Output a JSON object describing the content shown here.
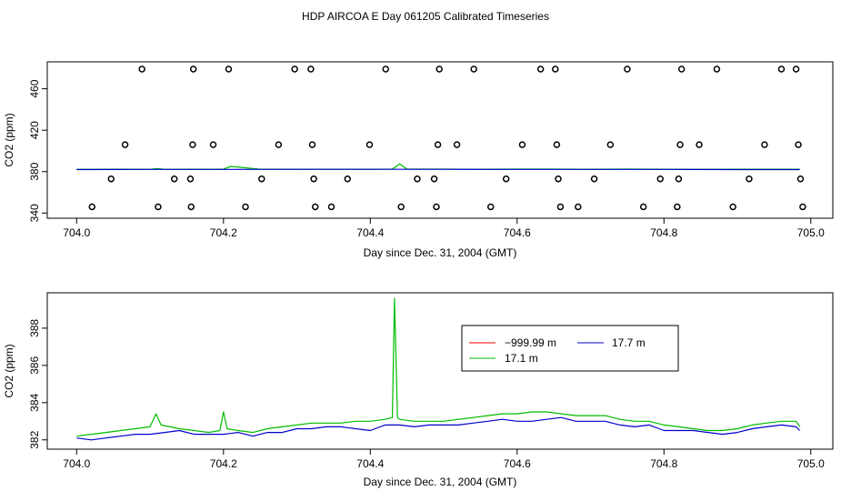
{
  "page_title": "HDP AIRCOA E  Day 061205  Calibrated Timeseries",
  "colors": {
    "red": "#ff0000",
    "green": "#00bb00",
    "blue": "#0000cc",
    "axis": "#000000"
  },
  "chart_data": [
    {
      "type": "scatter",
      "title": "",
      "xlabel": "Day since Dec. 31, 2004 (GMT)",
      "ylabel": "CO2 (ppm)",
      "xlim": [
        704.0,
        705.0
      ],
      "ylim": [
        340,
        480
      ],
      "xticks": [
        "704.0",
        "704.2",
        "704.4",
        "704.6",
        "704.8",
        "705.0"
      ],
      "yticks": [
        "340",
        "380",
        "420",
        "460"
      ],
      "grid": false,
      "legend": "none",
      "points": [
        {
          "x": 704.021,
          "y": 346
        },
        {
          "x": 704.047,
          "y": 373
        },
        {
          "x": 704.066,
          "y": 406
        },
        {
          "x": 704.089,
          "y": 479
        },
        {
          "x": 704.111,
          "y": 346
        },
        {
          "x": 704.133,
          "y": 373
        },
        {
          "x": 704.155,
          "y": 373
        },
        {
          "x": 704.156,
          "y": 346
        },
        {
          "x": 704.158,
          "y": 406
        },
        {
          "x": 704.159,
          "y": 479
        },
        {
          "x": 704.186,
          "y": 406
        },
        {
          "x": 704.207,
          "y": 479
        },
        {
          "x": 704.23,
          "y": 346
        },
        {
          "x": 704.252,
          "y": 373
        },
        {
          "x": 704.275,
          "y": 406
        },
        {
          "x": 704.297,
          "y": 479
        },
        {
          "x": 704.319,
          "y": 479
        },
        {
          "x": 704.321,
          "y": 406
        },
        {
          "x": 704.323,
          "y": 373
        },
        {
          "x": 704.325,
          "y": 346
        },
        {
          "x": 704.347,
          "y": 346
        },
        {
          "x": 704.369,
          "y": 373
        },
        {
          "x": 704.399,
          "y": 406
        },
        {
          "x": 704.421,
          "y": 479
        },
        {
          "x": 704.442,
          "y": 346
        },
        {
          "x": 704.464,
          "y": 373
        },
        {
          "x": 704.487,
          "y": 373
        },
        {
          "x": 704.49,
          "y": 346
        },
        {
          "x": 704.492,
          "y": 406
        },
        {
          "x": 704.494,
          "y": 479
        },
        {
          "x": 704.518,
          "y": 406
        },
        {
          "x": 704.541,
          "y": 479
        },
        {
          "x": 704.564,
          "y": 346
        },
        {
          "x": 704.585,
          "y": 373
        },
        {
          "x": 704.607,
          "y": 406
        },
        {
          "x": 704.632,
          "y": 479
        },
        {
          "x": 704.652,
          "y": 479
        },
        {
          "x": 704.654,
          "y": 406
        },
        {
          "x": 704.656,
          "y": 373
        },
        {
          "x": 704.659,
          "y": 346
        },
        {
          "x": 704.683,
          "y": 346
        },
        {
          "x": 704.705,
          "y": 373
        },
        {
          "x": 704.727,
          "y": 406
        },
        {
          "x": 704.75,
          "y": 479
        },
        {
          "x": 704.772,
          "y": 346
        },
        {
          "x": 704.795,
          "y": 373
        },
        {
          "x": 704.818,
          "y": 346
        },
        {
          "x": 704.82,
          "y": 373
        },
        {
          "x": 704.822,
          "y": 406
        },
        {
          "x": 704.824,
          "y": 479
        },
        {
          "x": 704.848,
          "y": 406
        },
        {
          "x": 704.872,
          "y": 479
        },
        {
          "x": 704.894,
          "y": 346
        },
        {
          "x": 704.916,
          "y": 373
        },
        {
          "x": 704.937,
          "y": 406
        },
        {
          "x": 704.96,
          "y": 479
        },
        {
          "x": 704.98,
          "y": 479
        },
        {
          "x": 704.983,
          "y": 406
        },
        {
          "x": 704.986,
          "y": 373
        },
        {
          "x": 704.989,
          "y": 346
        }
      ],
      "series": [
        {
          "color": "green",
          "x": [
            704.0,
            704.05,
            704.1,
            704.11,
            704.12,
            704.15,
            704.2,
            704.21,
            704.25,
            704.3,
            704.35,
            704.4,
            704.43,
            704.44,
            704.45,
            704.5,
            704.55,
            704.6,
            704.65,
            704.7,
            704.75,
            704.8,
            704.85,
            704.9,
            704.95,
            704.985
          ],
          "values": [
            382.2,
            382.3,
            382.2,
            383.0,
            382.2,
            382.3,
            382.4,
            385.0,
            382.3,
            382.3,
            382.3,
            382.3,
            382.4,
            387.5,
            382.4,
            382.4,
            382.3,
            382.4,
            382.4,
            382.3,
            382.4,
            382.3,
            382.2,
            382.3,
            382.3,
            382.3
          ]
        },
        {
          "color": "blue",
          "x": [
            704.0,
            704.1,
            704.2,
            704.3,
            704.4,
            704.5,
            704.6,
            704.7,
            704.8,
            704.9,
            704.985
          ],
          "values": [
            382.0,
            382.1,
            382.1,
            382.2,
            382.2,
            382.2,
            382.1,
            382.1,
            382.1,
            382.0,
            382.0
          ]
        }
      ]
    },
    {
      "type": "line",
      "title": "",
      "xlabel": "Day since Dec. 31, 2004 (GMT)",
      "ylabel": "CO2 (ppm)",
      "xlim": [
        704.0,
        705.0
      ],
      "ylim": [
        381.8,
        389.6
      ],
      "xticks": [
        "704.0",
        "704.2",
        "704.4",
        "704.6",
        "704.8",
        "705.0"
      ],
      "yticks": [
        "382",
        "384",
        "386",
        "388"
      ],
      "grid": false,
      "legend": "top-center",
      "series": [
        {
          "name": "−999.99 m",
          "color": "red",
          "x": [],
          "values": []
        },
        {
          "name": "17.7 m",
          "color": "blue",
          "x": [
            704.0,
            704.02,
            704.04,
            704.06,
            704.08,
            704.1,
            704.12,
            704.14,
            704.16,
            704.18,
            704.2,
            704.22,
            704.24,
            704.26,
            704.28,
            704.3,
            704.32,
            704.34,
            704.36,
            704.38,
            704.4,
            704.42,
            704.44,
            704.46,
            704.48,
            704.5,
            704.52,
            704.54,
            704.56,
            704.58,
            704.6,
            704.62,
            704.64,
            704.66,
            704.68,
            704.7,
            704.72,
            704.74,
            704.76,
            704.78,
            704.8,
            704.82,
            704.84,
            704.86,
            704.88,
            704.9,
            704.92,
            704.94,
            704.96,
            704.98,
            704.985
          ],
          "values": [
            382.1,
            382.0,
            382.1,
            382.2,
            382.3,
            382.3,
            382.4,
            382.5,
            382.3,
            382.3,
            382.3,
            382.4,
            382.2,
            382.4,
            382.4,
            382.6,
            382.6,
            382.7,
            382.7,
            382.6,
            382.5,
            382.8,
            382.8,
            382.7,
            382.8,
            382.8,
            382.8,
            382.9,
            383.0,
            383.1,
            383.0,
            383.0,
            383.1,
            383.2,
            383.0,
            383.0,
            383.0,
            382.8,
            382.7,
            382.8,
            382.5,
            382.5,
            382.5,
            382.4,
            382.3,
            382.4,
            382.6,
            382.7,
            382.8,
            382.7,
            382.5
          ]
        },
        {
          "name": "17.1 m",
          "color": "green",
          "x": [
            704.0,
            704.02,
            704.04,
            704.06,
            704.08,
            704.1,
            704.108,
            704.115,
            704.14,
            704.16,
            704.18,
            704.195,
            704.2,
            704.205,
            704.22,
            704.24,
            704.26,
            704.28,
            704.3,
            704.32,
            704.34,
            704.36,
            704.38,
            704.4,
            704.42,
            704.43,
            704.433,
            704.437,
            704.44,
            704.46,
            704.48,
            704.5,
            704.52,
            704.54,
            704.56,
            704.58,
            704.6,
            704.62,
            704.64,
            704.66,
            704.68,
            704.7,
            704.72,
            704.74,
            704.76,
            704.78,
            704.8,
            704.82,
            704.84,
            704.86,
            704.88,
            704.9,
            704.92,
            704.94,
            704.96,
            704.98,
            704.985
          ],
          "values": [
            382.2,
            382.3,
            382.4,
            382.5,
            382.6,
            382.7,
            383.4,
            382.8,
            382.6,
            382.5,
            382.4,
            382.5,
            383.5,
            382.6,
            382.5,
            382.4,
            382.6,
            382.7,
            382.8,
            382.9,
            382.9,
            382.9,
            383.0,
            383.0,
            383.1,
            383.2,
            389.6,
            383.2,
            383.1,
            383.0,
            383.0,
            383.0,
            383.1,
            383.2,
            383.3,
            383.4,
            383.4,
            383.5,
            383.5,
            383.4,
            383.3,
            383.3,
            383.3,
            383.1,
            383.0,
            383.0,
            382.8,
            382.7,
            382.6,
            382.5,
            382.5,
            382.6,
            382.8,
            382.9,
            383.0,
            383.0,
            382.7
          ]
        }
      ]
    }
  ]
}
